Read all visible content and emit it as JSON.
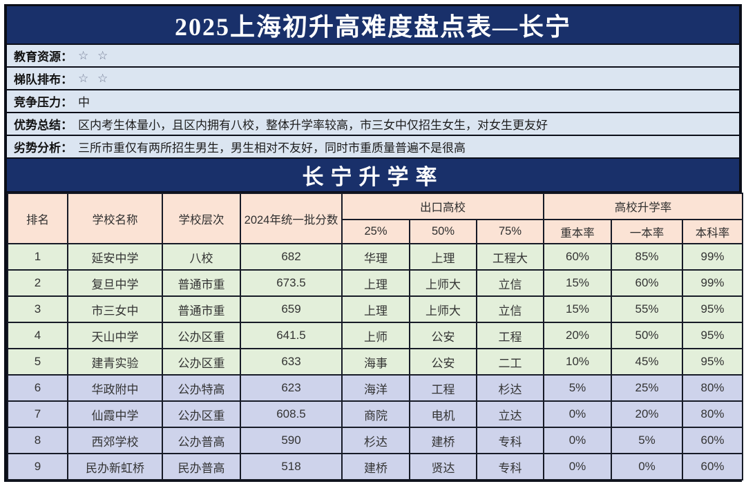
{
  "title": "2025上海初升高难度盘点表—长宁",
  "section_title": "长宁升学率",
  "info_rows": [
    {
      "label": "教育资源：",
      "value": "☆ ☆"
    },
    {
      "label": "梯队排布：",
      "value": "☆ ☆"
    },
    {
      "label": "竞争压力：",
      "value": "中"
    },
    {
      "label": "优势总结：",
      "value": "区内考生体量小，且区内拥有八校，整体升学率较高，市三女中仅招生女生，对女生更友好"
    },
    {
      "label": "劣势分析：",
      "value": "三所市重仅有两所招生男生，男生相对不友好，同时市重质量普遍不是很高"
    }
  ],
  "table": {
    "headers": {
      "rank": "排名",
      "school": "学校名称",
      "tier": "学校层次",
      "score": "2024年统一批分数",
      "exit_group": {
        "label": "出口高校",
        "cols": [
          "25%",
          "50%",
          "75%"
        ]
      },
      "rate_group": {
        "label": "高校升学率",
        "cols": [
          "重本率",
          "一本率",
          "本科率"
        ]
      }
    },
    "green_row_count": 5,
    "rows": [
      [
        "1",
        "延安中学",
        "八校",
        "682",
        "华理",
        "上理",
        "工程大",
        "60%",
        "85%",
        "99%"
      ],
      [
        "2",
        "复旦中学",
        "普通市重",
        "673.5",
        "上理",
        "上师大",
        "立信",
        "15%",
        "60%",
        "99%"
      ],
      [
        "3",
        "市三女中",
        "普通市重",
        "659",
        "上理",
        "上师大",
        "立信",
        "15%",
        "55%",
        "95%"
      ],
      [
        "4",
        "天山中学",
        "公办区重",
        "641.5",
        "上师",
        "公安",
        "工程",
        "20%",
        "50%",
        "95%"
      ],
      [
        "5",
        "建青实验",
        "公办区重",
        "633",
        "海事",
        "公安",
        "二工",
        "10%",
        "45%",
        "95%"
      ],
      [
        "6",
        "华政附中",
        "公办特高",
        "623",
        "海洋",
        "工程",
        "杉达",
        "5%",
        "25%",
        "80%"
      ],
      [
        "7",
        "仙霞中学",
        "公办区重",
        "608.5",
        "商院",
        "电机",
        "立达",
        "0%",
        "20%",
        "80%"
      ],
      [
        "8",
        "西郊学校",
        "公办普高",
        "590",
        "杉达",
        "建桥",
        "专科",
        "0%",
        "5%",
        "60%"
      ],
      [
        "9",
        "民办新虹桥",
        "民办普高",
        "518",
        "建桥",
        "贤达",
        "专科",
        "0%",
        "0%",
        "60%"
      ]
    ]
  },
  "colors": {
    "navy": "#19306a",
    "info_blue": "#dbe5f1",
    "header_peach": "#fbe3d5",
    "row_green": "#e3efda",
    "row_lavender": "#ced3eb",
    "border_dark": "#161a26"
  }
}
